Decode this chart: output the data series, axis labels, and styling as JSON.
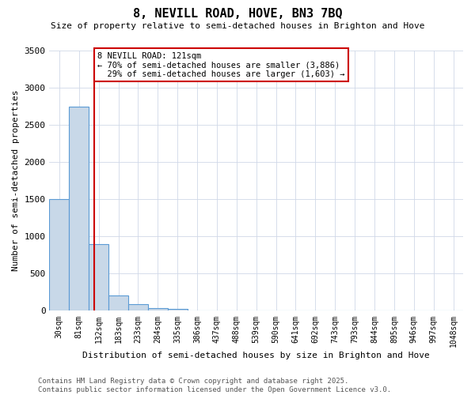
{
  "title_line1": "8, NEVILL ROAD, HOVE, BN3 7BQ",
  "title_line2": "Size of property relative to semi-detached houses in Brighton and Hove",
  "xlabel": "Distribution of semi-detached houses by size in Brighton and Hove",
  "ylabel": "Number of semi-detached properties",
  "bin_labels": [
    "30sqm",
    "81sqm",
    "132sqm",
    "183sqm",
    "233sqm",
    "284sqm",
    "335sqm",
    "386sqm",
    "437sqm",
    "488sqm",
    "539sqm",
    "590sqm",
    "641sqm",
    "692sqm",
    "743sqm",
    "793sqm",
    "844sqm",
    "895sqm",
    "946sqm",
    "997sqm",
    "1048sqm"
  ],
  "bin_values": [
    1500,
    2750,
    900,
    210,
    90,
    35,
    30,
    0,
    0,
    0,
    0,
    0,
    0,
    0,
    0,
    0,
    0,
    0,
    0,
    0,
    0
  ],
  "property_label": "8 NEVILL ROAD: 121sqm",
  "pct_smaller": 70,
  "pct_larger": 29,
  "n_smaller": 3886,
  "n_larger": 1603,
  "bar_color": "#c8d8e8",
  "bar_edge_color": "#5b9bd5",
  "vline_color": "#cc0000",
  "annotation_box_edge": "#cc0000",
  "background_color": "#ffffff",
  "grid_color": "#d0d8e8",
  "footer_line1": "Contains HM Land Registry data © Crown copyright and database right 2025.",
  "footer_line2": "Contains public sector information licensed under the Open Government Licence v3.0.",
  "ylim": [
    0,
    3500
  ],
  "yticks": [
    0,
    500,
    1000,
    1500,
    2000,
    2500,
    3000,
    3500
  ],
  "vline_x_bin": 1.78
}
